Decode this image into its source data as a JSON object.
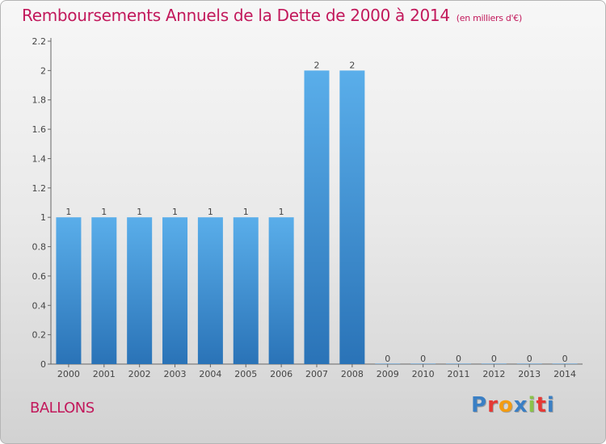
{
  "title": "Remboursements Annuels de la Dette de 2000 à 2014",
  "unit_note": "(en milliers d'€)",
  "commune": "BALLONS",
  "logo": {
    "text": "Proxiti",
    "letters": [
      "P",
      "r",
      "o",
      "x",
      "i",
      "t",
      "i"
    ],
    "colors": [
      "#3a7fc4",
      "#e53935",
      "#f39c12",
      "#3a7fc4",
      "#8bc34a",
      "#e53935",
      "#3a7fc4"
    ]
  },
  "colors": {
    "bar": "#3f8fd2",
    "bar_light": "#5aaeea",
    "bar_dark": "#2a73b7",
    "title": "#c2185b"
  },
  "chart_data": {
    "type": "bar",
    "categories": [
      "2000",
      "2001",
      "2002",
      "2003",
      "2004",
      "2005",
      "2006",
      "2007",
      "2008",
      "2009",
      "2010",
      "2011",
      "2012",
      "2013",
      "2014"
    ],
    "values": [
      1,
      1,
      1,
      1,
      1,
      1,
      1,
      2,
      2,
      0,
      0,
      0,
      0,
      0,
      0
    ],
    "data_labels": [
      "1",
      "1",
      "1",
      "1",
      "1",
      "1",
      "1",
      "2",
      "2",
      "0",
      "0",
      "0",
      "0",
      "0",
      "0"
    ],
    "ylim": [
      0,
      2.2
    ],
    "yticks": [
      0,
      0.2,
      0.4,
      0.6,
      0.8,
      1,
      1.2,
      1.4,
      1.6,
      1.8,
      2,
      2.2
    ],
    "ytick_labels": [
      "0",
      "0.2",
      "0.4",
      "0.6",
      "0.8",
      "1",
      "1.2",
      "1.4",
      "1.6",
      "1.8",
      "2",
      "2.2"
    ],
    "xlabel": "",
    "ylabel": "",
    "grid": false,
    "legend": "none"
  }
}
